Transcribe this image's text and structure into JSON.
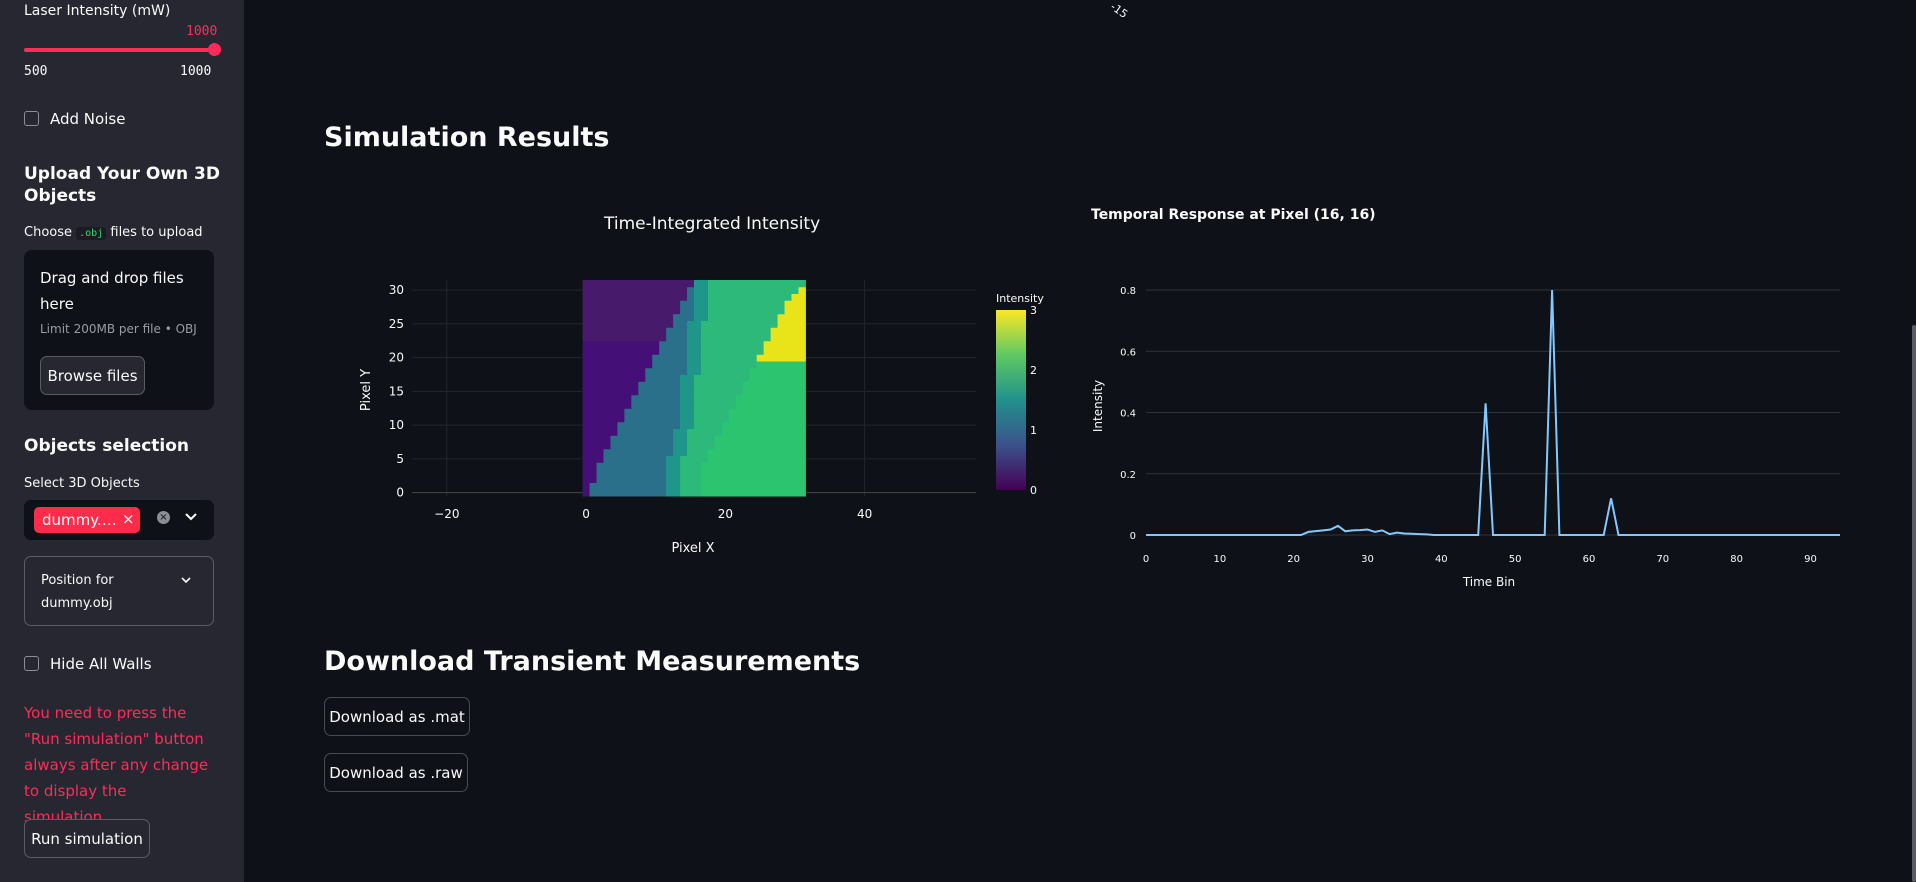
{
  "sidebar": {
    "slider": {
      "label": "Laser Intensity (mW)",
      "value": "1000",
      "min": "500",
      "max": "1000"
    },
    "add_noise_label": "Add Noise",
    "upload_heading": "Upload Your Own 3D Objects",
    "upload_choose_prefix": "Choose",
    "upload_choose_code": ".obj",
    "upload_choose_suffix": "files to upload",
    "dropzone_title": "Drag and drop files here",
    "dropzone_limit": "Limit 200MB per file • OBJ",
    "browse_label": "Browse files",
    "objects_heading": "Objects selection",
    "select_label": "Select 3D Objects",
    "selected_chip": "dummy.…",
    "expander_label": "Position for dummy.obj",
    "hide_walls_label": "Hide All Walls",
    "warning_text": "You need to press the \"Run simulation\" button always after any change to display the simulation.",
    "run_label": "Run simulation"
  },
  "main": {
    "top_partial_label": "-15",
    "results_heading": "Simulation Results",
    "download_heading": "Download Transient Measurements",
    "download_mat": "Download as .mat",
    "download_raw": "Download as .raw"
  },
  "colors": {
    "accent": "#ff2b5a",
    "background": "#0e1117",
    "sidebar": "#262730",
    "line": "#83c9ff"
  },
  "chart_data": [
    {
      "type": "heatmap",
      "title": "Time-Integrated Intensity",
      "xlabel": "Pixel X",
      "ylabel": "Pixel Y",
      "xlim": [
        -25,
        56
      ],
      "ylim": [
        -0.5,
        31.5
      ],
      "xticks": [
        "−20",
        "0",
        "20",
        "40"
      ],
      "yticks": [
        "0",
        "5",
        "10",
        "15",
        "20",
        "25",
        "30"
      ],
      "colorbar": {
        "title": "Intensity",
        "range": [
          0,
          3
        ],
        "ticks": [
          "0",
          "1",
          "2",
          "3"
        ]
      },
      "grid_size": [
        32,
        32
      ],
      "colorscale": "viridis",
      "region_boundaries_x_by_row": {
        "note_rows": "each entry y: [x0,x1,x2] = start of medium, teal-green, bright regions",
        "rows": [
          {
            "y": 0,
            "b": [
              1,
              12,
              17
            ]
          },
          {
            "y": 4,
            "b": [
              2,
              12,
              17
            ]
          },
          {
            "y": 8,
            "b": [
              4,
              13,
              19
            ]
          },
          {
            "y": 12,
            "b": [
              6,
              14,
              21
            ]
          },
          {
            "y": 16,
            "b": [
              8,
              14,
              23
            ]
          },
          {
            "y": 20,
            "b": [
              10,
              15,
              25
            ]
          },
          {
            "y": 24,
            "b": [
              12,
              15,
              27
            ]
          },
          {
            "y": 28,
            "b": [
              14,
              16,
              29
            ]
          },
          {
            "y": 31,
            "b": [
              16,
              16,
              32
            ]
          }
        ]
      }
    },
    {
      "type": "line",
      "title": "Temporal Response at Pixel (16, 16)",
      "xlabel": "Time Bin",
      "ylabel": "Intensity",
      "xlim": [
        0,
        94
      ],
      "ylim": [
        0,
        0.8
      ],
      "xticks": [
        "0",
        "10",
        "20",
        "30",
        "40",
        "50",
        "60",
        "70",
        "80",
        "90"
      ],
      "yticks": [
        "0",
        "0.2",
        "0.4",
        "0.6",
        "0.8"
      ],
      "x": [
        0,
        21,
        22,
        24,
        25,
        26,
        27,
        28,
        29,
        30,
        31,
        32,
        33,
        34,
        35,
        36,
        37,
        38,
        39,
        40,
        45,
        46,
        47,
        53,
        54,
        55,
        56,
        62,
        63,
        64,
        94
      ],
      "y": [
        0,
        0,
        0.01,
        0.015,
        0.018,
        0.03,
        0.012,
        0.015,
        0.016,
        0.018,
        0.01,
        0.015,
        0.003,
        0.008,
        0.005,
        0.004,
        0.003,
        0.002,
        0,
        0,
        0,
        0.43,
        0,
        0,
        0,
        0.8,
        0,
        0,
        0.12,
        0,
        0
      ]
    }
  ]
}
